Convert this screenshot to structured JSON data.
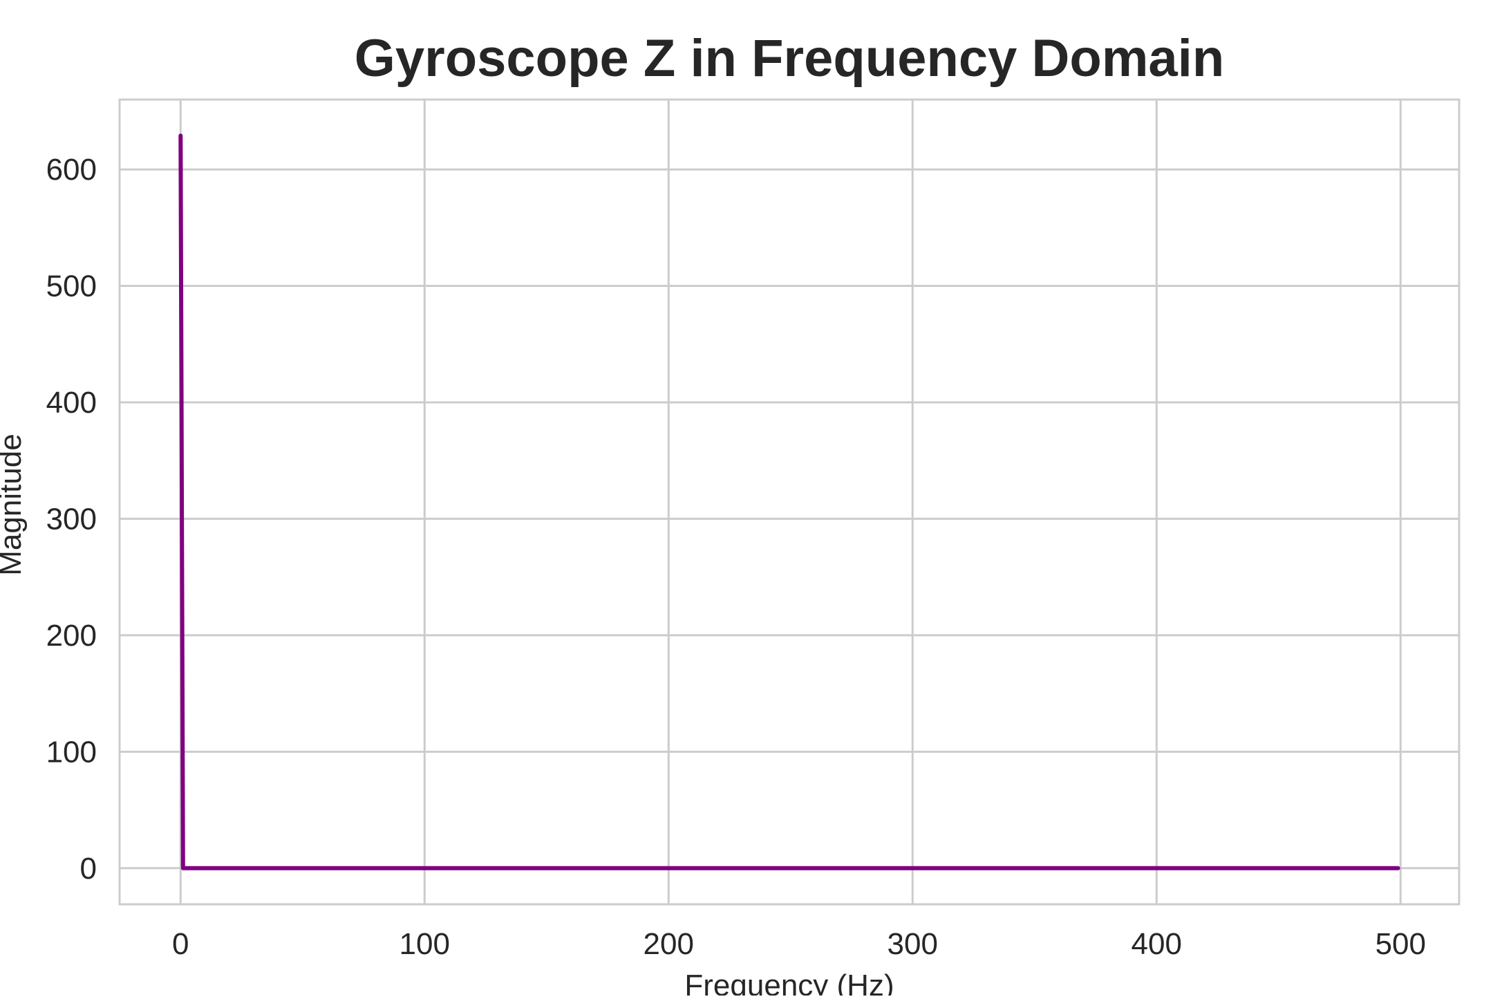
{
  "chart_data": {
    "type": "line",
    "title": "Gyroscope Z in Frequency Domain",
    "xlabel": "Frequency (Hz)",
    "ylabel": "Magnitude",
    "xlim": [
      -25,
      524
    ],
    "ylim": [
      -31,
      660
    ],
    "xticks": [
      0,
      100,
      200,
      300,
      400,
      500
    ],
    "yticks": [
      0,
      100,
      200,
      300,
      400,
      500,
      600
    ],
    "grid": true,
    "series": [
      {
        "color": "#800080",
        "x": [
          0,
          1,
          5,
          20,
          50,
          100,
          150,
          200,
          250,
          300,
          350,
          400,
          450,
          499
        ],
        "y": [
          629,
          0,
          0,
          0,
          0,
          0,
          0,
          0,
          0,
          0,
          0,
          0,
          0,
          0
        ]
      }
    ]
  },
  "colors": {
    "line": "#800080",
    "grid": "#cccccc",
    "text": "#262626"
  }
}
